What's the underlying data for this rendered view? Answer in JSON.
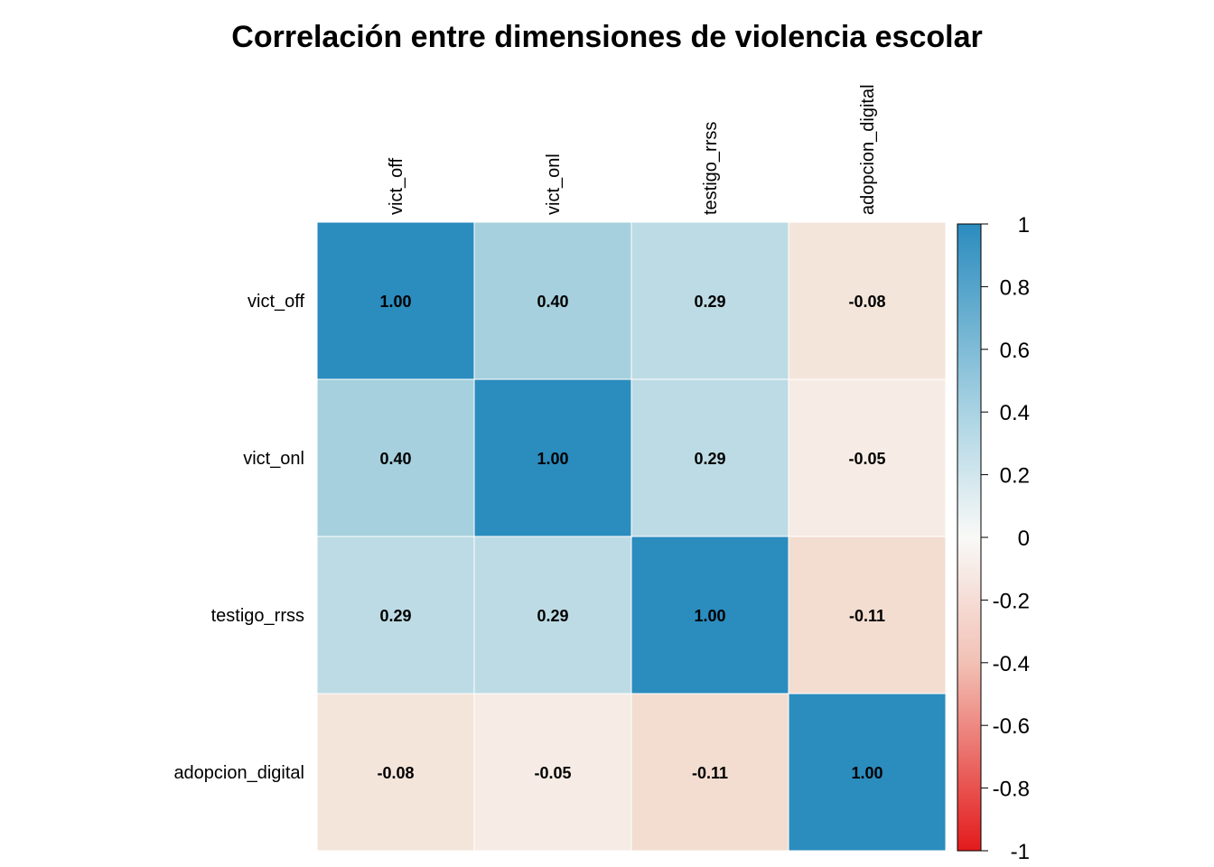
{
  "chart_data": {
    "type": "heatmap",
    "title": "Correlación entre dimensiones de violencia escolar",
    "variables": [
      "vict_off",
      "vict_onl",
      "testigo_rrss",
      "adopcion_digital"
    ],
    "matrix": [
      [
        1.0,
        0.4,
        0.29,
        -0.08
      ],
      [
        0.4,
        1.0,
        0.29,
        -0.05
      ],
      [
        0.29,
        0.29,
        1.0,
        -0.11
      ],
      [
        -0.08,
        -0.05,
        -0.11,
        1.0
      ]
    ],
    "cell_labels": [
      [
        "1.00",
        "0.40",
        "0.29",
        "-0.08"
      ],
      [
        "0.40",
        "1.00",
        "0.29",
        "-0.05"
      ],
      [
        "0.29",
        "0.29",
        "1.00",
        "-0.11"
      ],
      [
        "-0.08",
        "-0.05",
        "-0.11",
        "1.00"
      ]
    ],
    "color_scale": {
      "range": [
        -1,
        1
      ],
      "ticks": [
        1,
        0.8,
        0.6,
        0.4,
        0.2,
        0,
        -0.2,
        -0.4,
        -0.6,
        -0.8,
        -1
      ],
      "tick_labels": [
        "1",
        "0.8",
        "0.6",
        "0.4",
        "0.2",
        "0",
        "-0.2",
        "-0.4",
        "-0.6",
        "-0.8",
        "-1"
      ],
      "colors": {
        "negative": "#e31a1c",
        "neutral": "#f9f9f7",
        "positive": "#2b8cbe"
      },
      "position": "right"
    },
    "column_labels_position": "top",
    "row_labels_position": "left"
  }
}
